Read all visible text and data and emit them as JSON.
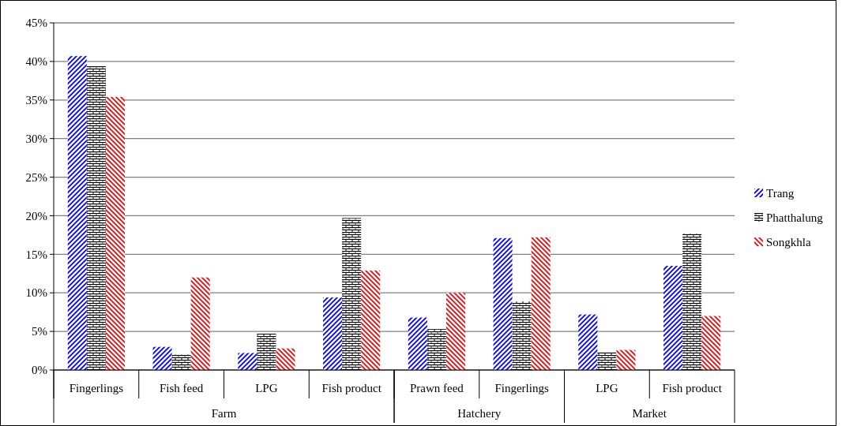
{
  "chart_data": {
    "type": "bar",
    "categories": [
      "Fingerlings",
      "Fish feed",
      "LPG",
      "Fish product",
      "Prawn feed",
      "Fingerlings",
      "LPG",
      "Fish product"
    ],
    "annotations": [
      "Farm",
      "Hatchery",
      "Market"
    ],
    "series": [
      {
        "name": "Trang",
        "color": "#0000ff",
        "values": [
          40.7,
          3.0,
          2.2,
          9.4,
          6.8,
          17.1,
          7.2,
          13.5
        ]
      },
      {
        "name": "Phatthalung",
        "color": "#000000",
        "values": [
          39.4,
          2.0,
          4.7,
          19.7,
          5.3,
          8.9,
          2.3,
          17.7
        ]
      },
      {
        "name": "Songkhla",
        "color": "#ff0000",
        "values": [
          35.4,
          12.0,
          2.8,
          12.9,
          10.0,
          17.2,
          2.6,
          7.0
        ]
      }
    ],
    "ylim": [
      0,
      45
    ],
    "yticks": [
      {
        "value": 0,
        "label": "0%"
      },
      {
        "value": 5,
        "label": "5%"
      },
      {
        "value": 10,
        "label": "10%"
      },
      {
        "value": 15,
        "label": "15%"
      },
      {
        "value": 20,
        "label": "20%"
      },
      {
        "value": 25,
        "label": "25%"
      },
      {
        "value": 30,
        "label": "30%"
      },
      {
        "value": 35,
        "label": "35%"
      },
      {
        "value": 40,
        "label": "40%"
      },
      {
        "value": 45,
        "label": "45%"
      }
    ],
    "grid": "y",
    "legend": "right"
  }
}
